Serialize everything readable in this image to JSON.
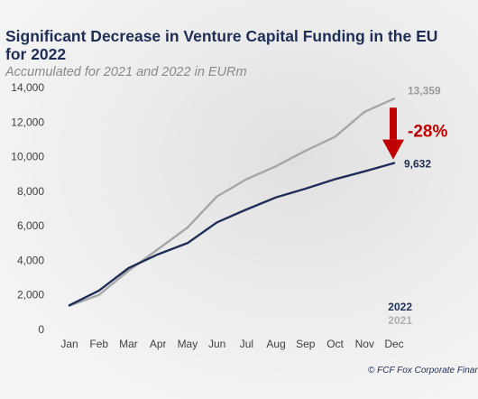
{
  "header": {
    "title": "Significant Decrease in Venture Capital Funding in the EU for 2022",
    "subtitle": "Accumulated for 2021 and 2022 in EURm"
  },
  "source": "© FCF Fox Corporate Finance",
  "colors": {
    "series_2022": "#1f2e57",
    "series_2021": "#a6a6a6",
    "change_arrow": "#c00000"
  },
  "chart_data": {
    "type": "line",
    "title": "Significant Decrease in Venture Capital Funding in the EU for 2022",
    "subtitle": "Accumulated for 2021 and 2022 in EURm",
    "categories": [
      "Jan",
      "Feb",
      "Mar",
      "Apr",
      "May",
      "Jun",
      "Jul",
      "Aug",
      "Sep",
      "Oct",
      "Nov",
      "Dec"
    ],
    "series": [
      {
        "name": "2022",
        "color": "#1f2e57",
        "values": [
          1400,
          2250,
          3550,
          4350,
          5000,
          6200,
          6950,
          7650,
          8150,
          8700,
          9150,
          9632
        ],
        "end_label": "9,632"
      },
      {
        "name": "2021",
        "color": "#a6a6a6",
        "values": [
          1380,
          2000,
          3400,
          4650,
          5900,
          7700,
          8700,
          9450,
          10350,
          11150,
          12600,
          13359
        ],
        "end_label": "13,359"
      }
    ],
    "ylim": [
      0,
      14000
    ],
    "yticks": [
      0,
      2000,
      4000,
      6000,
      8000,
      10000,
      12000,
      14000
    ],
    "ytick_labels": [
      "0",
      "2,000",
      "4,000",
      "6,000",
      "8,000",
      "10,000",
      "12,000",
      "14,000"
    ],
    "grid": false,
    "legend": "bottom-right",
    "annotation": {
      "text": "-28%",
      "color": "#c00000"
    }
  }
}
